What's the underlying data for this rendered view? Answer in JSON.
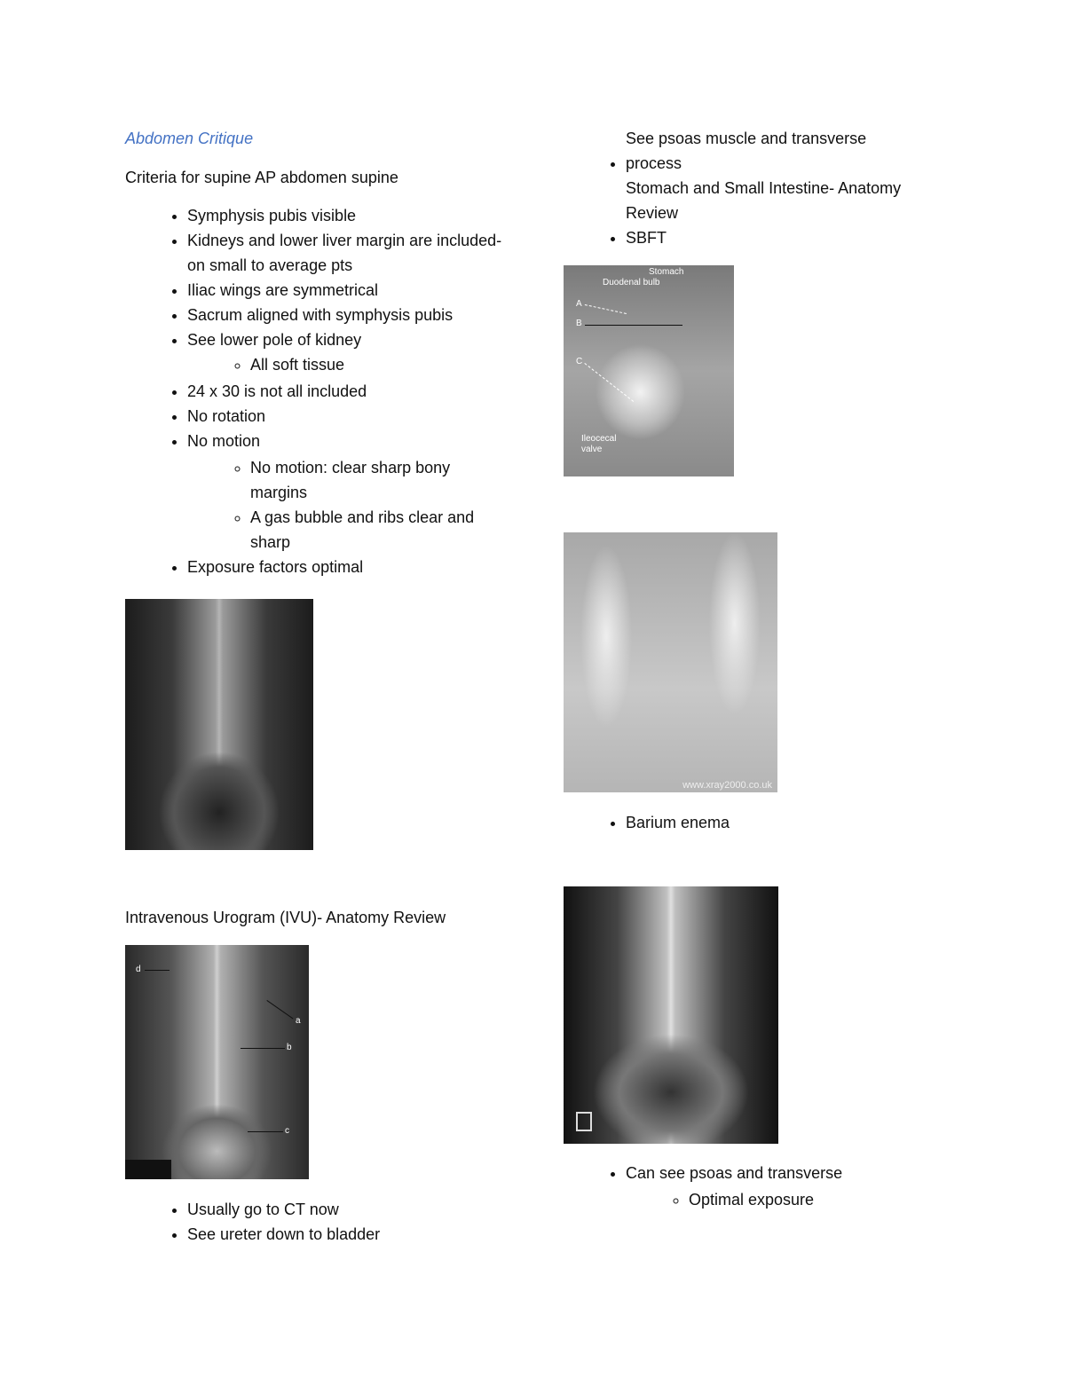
{
  "left": {
    "title": "Abdomen Critique",
    "subtitle": "Criteria for supine AP abdomen supine",
    "criteria": [
      {
        "text": "Symphysis pubis visible"
      },
      {
        "text": "Kidneys and lower liver margin are included- on small to average pts"
      },
      {
        "text": "Iliac wings are symmetrical"
      },
      {
        "text": "Sacrum aligned with symphysis pubis"
      },
      {
        "text": "See lower pole of kidney",
        "sub": [
          "All soft tissue"
        ]
      },
      {
        "text": "24 x 30 is not all included"
      },
      {
        "text": "No rotation"
      },
      {
        "text": "No motion",
        "sub": [
          "No motion: clear sharp bony margins",
          "A gas bubble and ribs clear and sharp"
        ]
      },
      {
        "text": "Exposure factors optimal"
      }
    ],
    "ivu_heading": "Intravenous Urogram (IVU)- Anatomy Review",
    "ivu_labels": [
      "d",
      "a",
      "b",
      "c"
    ],
    "ivu_bullets": [
      "Usually go to CT now",
      "See ureter down to bladder"
    ]
  },
  "right": {
    "bullet1": "See psoas muscle and transverse process",
    "bullet1_line2": "Stomach and Small Intestine- Anatomy Review",
    "bullet2": "SBFT",
    "sbft_labels": [
      "Stomach",
      "Duodenal bulb",
      "A",
      "B",
      "C",
      "Ileocecal valve"
    ],
    "watermark": "www.xray2000.co.uk",
    "barium": "Barium enema",
    "final_bullet": "Can see psoas and transverse",
    "final_sub": "Optimal exposure"
  }
}
